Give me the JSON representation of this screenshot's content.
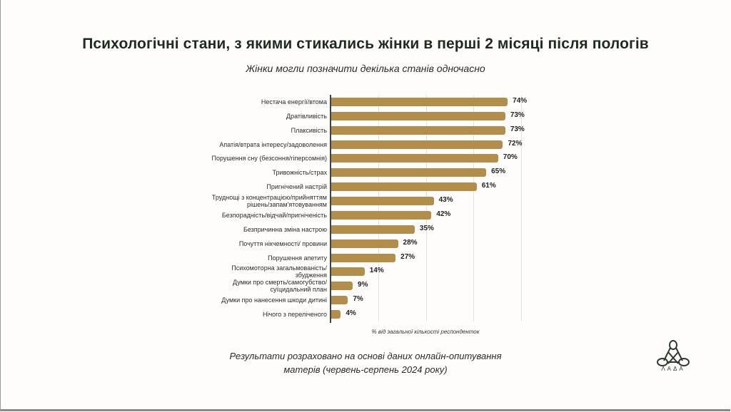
{
  "header": {
    "title": "Психологічні стани, з якими стикались жінки в перші 2 місяці після пологів",
    "subtitle": "Жінки могли позначити декілька станів одночасно"
  },
  "footer": {
    "line1": "Результати розраховано на основі даних онлайн-опитування",
    "line2": "матерів (червень-серпень 2024 року)"
  },
  "logo": {
    "icon": "knot-logo-icon",
    "text": "ΛΑΔΑ"
  },
  "colors": {
    "bar": "#b38d4a",
    "title": "#1f2a22",
    "axis": "#3a463e"
  },
  "chart_data": {
    "type": "bar",
    "orientation": "horizontal",
    "title": "Психологічні стани, з якими стикались жінки в перші 2 місяці після пологів",
    "subtitle": "Жінки могли позначити декілька станів одночасно",
    "xlabel": "% від загальної кількості респонденток",
    "ylabel": "",
    "xlim": [
      0,
      80
    ],
    "gridlines": [
      20,
      40,
      60,
      80
    ],
    "grid": true,
    "categories": [
      "Нестача енергії/втома",
      "Дратівливість",
      "Плаксивість",
      "Апатія/втрата інтересу/задоволення",
      "Порушення сну (безсоння/гіперсомнія)",
      "Тривожність/страх",
      "Пригнічений настрій",
      "Труднощі з концентрацією/прийняттям рішень/запам'ятовуванням",
      "Безпорадність/відчай/пригніченість",
      "Безпричинна зміна настрою",
      "Почуття нікчемності/ провини",
      "Порушення апетиту",
      "Психомоторна загальмованість/ збудження",
      "Думки про смерть/самогубство/ суїцидальний план",
      "Думки про нанесення шкоди дитині",
      "Нічого з переліченого"
    ],
    "label_lines": [
      [
        "Нестача енергії/втома"
      ],
      [
        "Дратівливість"
      ],
      [
        "Плаксивість"
      ],
      [
        "Апатія/втрата інтересу/задоволення"
      ],
      [
        "Порушення сну (безсоння/гіперсомнія)"
      ],
      [
        "Тривожність/страх"
      ],
      [
        "Пригнічений настрій"
      ],
      [
        "Труднощі з концентрацією/прийняттям",
        "рішень/запам'ятовуванням"
      ],
      [
        "Безпорадність/відчай/пригніченість"
      ],
      [
        "Безпричинна зміна настрою"
      ],
      [
        "Почуття нікчемності/ провини"
      ],
      [
        "Порушення апетиту"
      ],
      [
        "Психомоторна загальмованість/",
        "збудження"
      ],
      [
        "Думки про смерть/самогубство/",
        "суїцидальний план"
      ],
      [
        "Думки про нанесення шкоди дитині"
      ],
      [
        "Нічого з переліченого"
      ]
    ],
    "values": [
      74,
      73,
      73,
      72,
      70,
      65,
      61,
      43,
      42,
      35,
      28,
      27,
      14,
      9,
      7,
      4
    ],
    "value_labels": [
      "74%",
      "73%",
      "73%",
      "72%",
      "70%",
      "65%",
      "61%",
      "43%",
      "42%",
      "35%",
      "28%",
      "27%",
      "14%",
      "9%",
      "7%",
      "4%"
    ]
  }
}
